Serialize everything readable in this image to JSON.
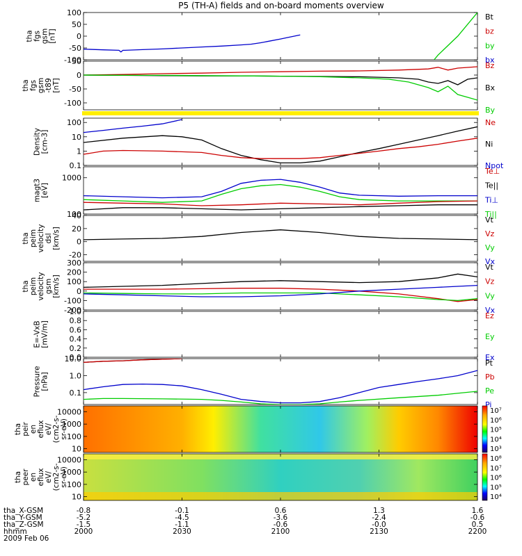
{
  "title": "P5 (TH-A) fields and on-board moments overview",
  "colors": {
    "black": "#000000",
    "red": "#cc0000",
    "green": "#00cc00",
    "blue": "#0000cc",
    "yellow": "#ffee00"
  },
  "chart_data": [
    {
      "type": "line",
      "panel": "fgs",
      "ylabel": [
        "tha",
        "fgs",
        "gsm",
        "[nT]"
      ],
      "yticks": [
        "100",
        "50",
        "0",
        "-50",
        "-100"
      ],
      "ylim": [
        -100,
        100
      ],
      "log": false,
      "legend": [
        {
          "label": "Bt",
          "color": "black"
        },
        {
          "label": "bz",
          "color": "red"
        },
        {
          "label": "by",
          "color": "green"
        },
        {
          "label": "bx",
          "color": "blue"
        }
      ],
      "series": [
        {
          "name": "bx",
          "color": "blue",
          "x": [
            0,
            10,
            18,
            19,
            20,
            21,
            30,
            40,
            50,
            60,
            70,
            80,
            85,
            90,
            95,
            100,
            104,
            107,
            110
          ],
          "y": [
            -55,
            -58,
            -60,
            -67,
            -60,
            -60,
            -57,
            -54,
            -50,
            -46,
            -42,
            -37,
            -34,
            -28,
            -20,
            -12,
            -5,
            0,
            5
          ]
        },
        {
          "name": "by",
          "color": "green",
          "x": [
            178,
            180,
            190,
            200
          ],
          "y": [
            -100,
            -80,
            0,
            100
          ]
        }
      ]
    },
    {
      "type": "line",
      "panel": "fgs-t89",
      "ylabel": [
        "tha",
        "fgs",
        "gsm",
        "-t89",
        "[nT]"
      ],
      "yticks": [
        "50",
        "0",
        "-50",
        "-100"
      ],
      "ylim": [
        -125,
        50
      ],
      "log": false,
      "legend": [
        {
          "label": "Bz",
          "color": "red"
        },
        {
          "label": "Bx",
          "color": "black"
        },
        {
          "label": "By",
          "color": "green"
        }
      ],
      "series": [
        {
          "name": "Bz",
          "color": "red",
          "x": [
            0,
            20,
            40,
            60,
            80,
            100,
            120,
            140,
            160,
            175,
            180,
            185,
            190,
            200
          ],
          "y": [
            0,
            2,
            5,
            7,
            10,
            12,
            14,
            15,
            18,
            22,
            28,
            18,
            25,
            30
          ]
        },
        {
          "name": "Bx",
          "color": "black",
          "x": [
            0,
            20,
            40,
            60,
            80,
            100,
            120,
            140,
            160,
            170,
            175,
            180,
            185,
            190,
            195,
            200
          ],
          "y": [
            0,
            -1,
            -2,
            -3,
            -3,
            -4,
            -5,
            -6,
            -10,
            -15,
            -25,
            -30,
            -20,
            -35,
            -15,
            -10
          ]
        },
        {
          "name": "By",
          "color": "green",
          "x": [
            0,
            20,
            40,
            60,
            80,
            100,
            120,
            140,
            155,
            165,
            170,
            175,
            180,
            185,
            190,
            195,
            200
          ],
          "y": [
            0,
            -1,
            -1,
            -2,
            -3,
            -4,
            -6,
            -10,
            -15,
            -25,
            -35,
            -45,
            -60,
            -40,
            -70,
            -80,
            -90
          ]
        }
      ]
    },
    {
      "type": "line",
      "panel": "density",
      "ylabel": [
        "Density",
        "[cm-3]"
      ],
      "yticks": [
        "100",
        "10",
        "1",
        "0.1"
      ],
      "ylim": [
        0.1,
        200
      ],
      "log": true,
      "legend": [
        {
          "label": "Ne",
          "color": "red"
        },
        {
          "label": "Ni",
          "color": "black"
        },
        {
          "label": "Npot",
          "color": "blue"
        }
      ],
      "series": [
        {
          "name": "Npot",
          "color": "blue",
          "x": [
            0,
            10,
            20,
            30,
            40,
            50
          ],
          "y": [
            20,
            28,
            40,
            55,
            80,
            160
          ]
        },
        {
          "name": "Ni",
          "color": "black",
          "x": [
            0,
            20,
            40,
            50,
            60,
            70,
            80,
            90,
            100,
            110,
            120,
            130,
            140,
            150,
            160,
            170,
            180,
            190,
            200
          ],
          "y": [
            4,
            8,
            12,
            10,
            6,
            1.5,
            0.5,
            0.25,
            0.15,
            0.15,
            0.2,
            0.4,
            0.8,
            1.5,
            3,
            6,
            12,
            25,
            50
          ]
        },
        {
          "name": "Ne",
          "color": "red",
          "x": [
            0,
            10,
            20,
            40,
            60,
            70,
            80,
            90,
            100,
            110,
            120,
            130,
            140,
            150,
            160,
            170,
            180,
            190,
            200
          ],
          "y": [
            0.6,
            1,
            1.1,
            1,
            0.8,
            0.5,
            0.35,
            0.3,
            0.3,
            0.3,
            0.35,
            0.5,
            0.7,
            1,
            1.5,
            2,
            3,
            5,
            8
          ]
        }
      ]
    },
    {
      "type": "line",
      "panel": "magt3",
      "ylabel": [
        "magt3",
        "[eV]"
      ],
      "yticks": [
        "1000",
        "100"
      ],
      "ylim": [
        100,
        2000
      ],
      "log": true,
      "legend": [
        {
          "label": "Te⊥",
          "color": "red"
        },
        {
          "label": "Te||",
          "color": "black"
        },
        {
          "label": "Ti⊥",
          "color": "blue"
        },
        {
          "label": "Ti||",
          "color": "green"
        }
      ],
      "series": [
        {
          "name": "Ti⊥",
          "color": "blue",
          "x": [
            0,
            20,
            40,
            60,
            70,
            80,
            90,
            100,
            110,
            120,
            130,
            140,
            160,
            180,
            200
          ],
          "y": [
            320,
            300,
            280,
            300,
            420,
            700,
            850,
            900,
            750,
            550,
            380,
            330,
            310,
            320,
            320
          ]
        },
        {
          "name": "Ti||",
          "color": "green",
          "x": [
            0,
            20,
            40,
            60,
            70,
            80,
            90,
            100,
            110,
            120,
            130,
            140,
            160,
            180,
            200
          ],
          "y": [
            250,
            230,
            210,
            230,
            350,
            500,
            600,
            650,
            550,
            420,
            300,
            250,
            230,
            230,
            230
          ]
        },
        {
          "name": "Te⊥",
          "color": "red",
          "x": [
            0,
            20,
            40,
            60,
            80,
            100,
            120,
            140,
            160,
            180,
            200
          ],
          "y": [
            210,
            200,
            190,
            170,
            180,
            200,
            190,
            180,
            200,
            220,
            230
          ]
        },
        {
          "name": "Te||",
          "color": "black",
          "x": [
            0,
            20,
            40,
            60,
            80,
            100,
            120,
            140,
            160,
            180,
            200
          ],
          "y": [
            130,
            150,
            150,
            140,
            130,
            140,
            150,
            160,
            170,
            180,
            180
          ]
        }
      ]
    },
    {
      "type": "line",
      "panel": "peim-velocity-dsl",
      "ylabel": [
        "tha",
        "peim",
        "velocity",
        "dsl",
        "[km/s]"
      ],
      "yticks": [
        "40",
        "20",
        "0",
        "-20"
      ],
      "ylim": [
        -30,
        40
      ],
      "log": false,
      "legend": [
        {
          "label": "Vt",
          "color": "black"
        },
        {
          "label": "Vz",
          "color": "red"
        },
        {
          "label": "Vy",
          "color": "green"
        },
        {
          "label": "Vx",
          "color": "blue"
        }
      ],
      "series": [
        {
          "name": "Vt",
          "color": "black",
          "x": [
            0,
            20,
            40,
            60,
            80,
            100,
            120,
            140,
            160,
            180,
            200
          ],
          "y": [
            3,
            4,
            5,
            8,
            14,
            18,
            14,
            8,
            5,
            4,
            3
          ]
        }
      ]
    },
    {
      "type": "line",
      "panel": "peim-velocity-gsm",
      "ylabel": [
        "tha",
        "peim",
        "velocity",
        "gsm",
        "[km/s]"
      ],
      "yticks": [
        "300",
        "200",
        "100",
        "0",
        "-100",
        "-200"
      ],
      "ylim": [
        -200,
        300
      ],
      "log": false,
      "legend": [
        {
          "label": "Vt",
          "color": "black"
        },
        {
          "label": "Vz",
          "color": "red"
        },
        {
          "label": "Vy",
          "color": "green"
        },
        {
          "label": "Vx",
          "color": "blue"
        }
      ],
      "series": [
        {
          "name": "Vt",
          "color": "black",
          "x": [
            0,
            20,
            40,
            60,
            80,
            100,
            120,
            140,
            160,
            180,
            190,
            200
          ],
          "y": [
            40,
            50,
            60,
            80,
            100,
            110,
            100,
            90,
            100,
            140,
            180,
            150
          ]
        },
        {
          "name": "Vz",
          "color": "red",
          "x": [
            0,
            20,
            40,
            60,
            80,
            100,
            120,
            140,
            160,
            180,
            190,
            200
          ],
          "y": [
            20,
            20,
            20,
            25,
            30,
            30,
            20,
            0,
            -30,
            -80,
            -110,
            -90
          ]
        },
        {
          "name": "Vy",
          "color": "green",
          "x": [
            0,
            20,
            40,
            60,
            80,
            100,
            120,
            140,
            160,
            180,
            190,
            200
          ],
          "y": [
            -20,
            -25,
            -30,
            -30,
            -20,
            -20,
            -20,
            -40,
            -60,
            -90,
            -100,
            -80
          ]
        },
        {
          "name": "Vx",
          "color": "blue",
          "x": [
            0,
            20,
            40,
            60,
            80,
            100,
            120,
            140,
            160,
            180,
            190,
            200
          ],
          "y": [
            -30,
            -40,
            -50,
            -60,
            -60,
            -50,
            -30,
            0,
            20,
            40,
            50,
            60
          ]
        }
      ]
    },
    {
      "type": "line",
      "panel": "efield",
      "ylabel": [
        "E=-VxB",
        "[mV/m]"
      ],
      "yticks": [
        "1.0",
        "0.8",
        "0.6",
        "0.4",
        "0.2",
        "0.0"
      ],
      "ylim": [
        0,
        1
      ],
      "log": false,
      "legend": [
        {
          "label": "Ez",
          "color": "red"
        },
        {
          "label": "Ey",
          "color": "green"
        },
        {
          "label": "Ex",
          "color": "blue"
        }
      ],
      "series": []
    },
    {
      "type": "line",
      "panel": "pressure",
      "ylabel": [
        "Pressure",
        "[nPa]"
      ],
      "yticks": [
        "10.0",
        "1.0",
        "0.1"
      ],
      "ylim": [
        0.02,
        10
      ],
      "log": true,
      "legend": [
        {
          "label": "Pt",
          "color": "black"
        },
        {
          "label": "Pb",
          "color": "red"
        },
        {
          "label": "Pe",
          "color": "green"
        },
        {
          "label": "Pi",
          "color": "blue"
        }
      ],
      "series": [
        {
          "name": "Pt",
          "color": "black",
          "x": [
            0,
            10,
            20,
            30,
            40,
            50
          ],
          "y": [
            6,
            7,
            7.5,
            8.5,
            9.2,
            10
          ]
        },
        {
          "name": "Pb",
          "color": "red",
          "x": [
            0,
            10,
            20,
            30,
            40,
            50
          ],
          "y": [
            6,
            7,
            7.5,
            8.5,
            9.2,
            10
          ]
        },
        {
          "name": "Pi",
          "color": "blue",
          "x": [
            0,
            10,
            20,
            30,
            40,
            50,
            60,
            70,
            80,
            90,
            100,
            110,
            120,
            130,
            140,
            150,
            160,
            170,
            180,
            190,
            200
          ],
          "y": [
            0.15,
            0.22,
            0.3,
            0.32,
            0.3,
            0.25,
            0.15,
            0.08,
            0.04,
            0.03,
            0.025,
            0.025,
            0.03,
            0.05,
            0.1,
            0.2,
            0.3,
            0.45,
            0.65,
            1,
            2
          ]
        },
        {
          "name": "Pe",
          "color": "green",
          "x": [
            0,
            10,
            20,
            40,
            60,
            70,
            80,
            90,
            100,
            110,
            120,
            130,
            140,
            160,
            180,
            200
          ],
          "y": [
            0.04,
            0.045,
            0.045,
            0.043,
            0.04,
            0.035,
            0.028,
            0.022,
            0.02,
            0.02,
            0.022,
            0.028,
            0.035,
            0.05,
            0.07,
            0.12
          ]
        }
      ]
    },
    {
      "type": "heatmap",
      "panel": "peir",
      "ylabel": [
        "tha",
        "peir",
        "en",
        "eflux",
        "eV/",
        "(cm2-s-",
        "sr-eV)"
      ],
      "yticks": [
        "10000",
        "1000",
        "100",
        "10"
      ],
      "colorbar": [
        "10⁷",
        "10⁶",
        "10⁵",
        "10⁴",
        "10³"
      ]
    },
    {
      "type": "heatmap",
      "panel": "peer",
      "ylabel": [
        "tha",
        "peer",
        "en",
        "eflux",
        "eV/",
        "(cm2-s-",
        "sr-eV)"
      ],
      "yticks": [
        "10000",
        "1000",
        "100",
        "10"
      ],
      "colorbar": [
        "10⁸",
        "10⁷",
        "10⁶",
        "10⁵",
        "10⁴"
      ]
    }
  ],
  "x_axis": {
    "rows": [
      {
        "label": "tha_X-GSM",
        "values": [
          "-0.8",
          "-0.1",
          "0.6",
          "1.3",
          "1.6"
        ]
      },
      {
        "label": "tha_Y-GSM",
        "values": [
          "-5.2",
          "-4.5",
          "-3.6",
          "-2.4",
          "-0.6"
        ]
      },
      {
        "label": "tha_Z-GSM",
        "values": [
          "-1.5",
          "-1.1",
          "-0.6",
          "-0.0",
          "0.5"
        ]
      },
      {
        "label": "hhmm",
        "values": [
          "2000",
          "2030",
          "2100",
          "2130",
          "2200"
        ]
      }
    ],
    "date": "2009 Feb 06"
  }
}
